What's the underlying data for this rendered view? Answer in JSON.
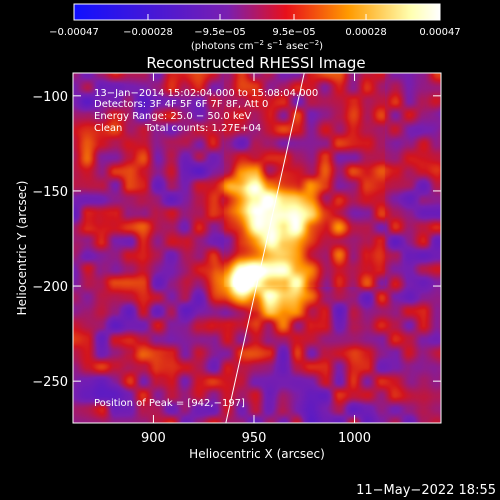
{
  "chart_data": {
    "type": "heatmap",
    "title": "Reconstructed RHESSI Image",
    "xlabel": "Heliocentric X (arcsec)",
    "ylabel": "Heliocentric Y (arcsec)",
    "xlim": [
      860,
      1043
    ],
    "ylim": [
      -272,
      -88
    ],
    "x_ticks": [
      900,
      950,
      1000
    ],
    "y_ticks": [
      -100,
      -150,
      -200,
      -250
    ],
    "x_tick_labels": [
      "900",
      "950",
      "1000"
    ],
    "y_tick_labels": [
      "−100",
      "−150",
      "−200",
      "−250"
    ],
    "colorbar": {
      "ticks": [
        -0.00047,
        -0.00028,
        -9.5e-05,
        9.5e-05,
        0.00028,
        0.00047
      ],
      "tick_labels": [
        "−0.00047",
        "−0.00028",
        "−9.5e−05",
        "9.5e−05",
        "0.00028",
        "0.00047"
      ],
      "range": [
        -0.00047,
        0.00047
      ],
      "colors": [
        "#1010ff",
        "#7a1fb0",
        "#e8101a",
        "#ff9a00",
        "#ffffb0",
        "#ffffff"
      ],
      "unit_parts": [
        "(photons cm",
        "−2",
        " s",
        "−1",
        " asec",
        "−2",
        ")"
      ]
    },
    "sources": [
      {
        "x": 942,
        "y": -197,
        "peak": 0.00047,
        "sigma": 9
      },
      {
        "x": 948,
        "y": -152,
        "peak": 0.00042,
        "sigma": 8
      },
      {
        "x": 961,
        "y": -172,
        "peak": 0.00036,
        "sigma": 10
      },
      {
        "x": 965,
        "y": -200,
        "peak": 0.0003,
        "sigma": 12
      },
      {
        "x": 972,
        "y": -160,
        "peak": 0.00025,
        "sigma": 12
      }
    ],
    "limb_line": [
      [
        936,
        -272
      ],
      [
        975,
        -88
      ]
    ]
  },
  "annotations": {
    "time_range": "13−Jan−2014 15:02:04.000 to 15:08:04.000",
    "detectors": "Detectors: 3F 4F 5F 6F 7F 8F, Att 0",
    "energy_range": "Energy Range: 25.0 − 50.0 keV",
    "method": "Clean",
    "total_counts": "Total counts: 1.27E+04",
    "peak_position": "Position of Peak = [942,−197]"
  },
  "footer": {
    "date": "11−May−2022 18:55"
  }
}
